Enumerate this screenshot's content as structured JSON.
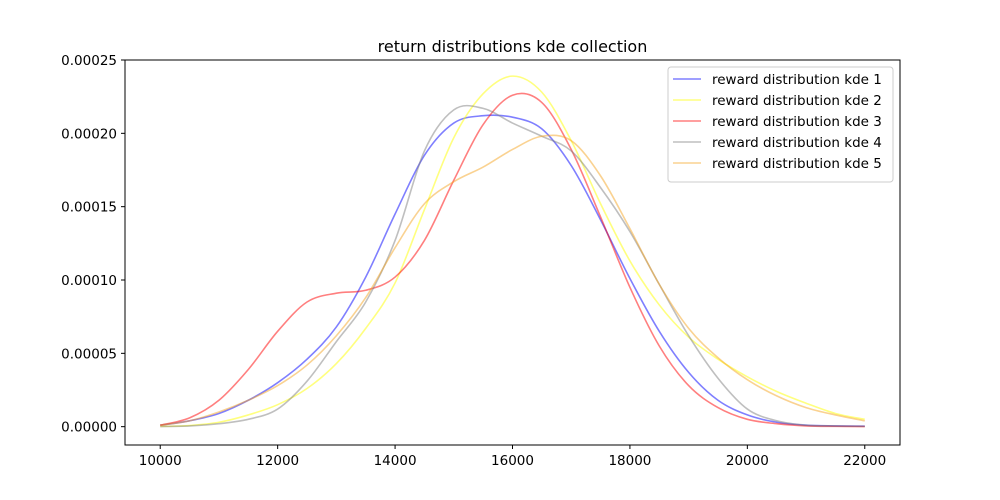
{
  "chart_data": {
    "type": "line",
    "title": "return distributions kde collection",
    "xlabel": "",
    "ylabel": "",
    "xlim": [
      9400,
      22600
    ],
    "ylim": [
      -1.25e-05,
      0.00025
    ],
    "x_ticks": [
      10000,
      12000,
      14000,
      16000,
      18000,
      20000,
      22000
    ],
    "x_tick_labels": [
      "10000",
      "12000",
      "14000",
      "16000",
      "18000",
      "20000",
      "22000"
    ],
    "y_ticks": [
      0,
      5e-05,
      0.0001,
      0.00015,
      0.0002,
      0.00025
    ],
    "y_tick_labels": [
      "0.00000",
      "0.00005",
      "0.00010",
      "0.00015",
      "0.00020",
      "0.00025"
    ],
    "grid": false,
    "legend_position": "top-right",
    "x": [
      10000,
      10500,
      11000,
      11500,
      12000,
      12500,
      13000,
      13500,
      14000,
      14500,
      15000,
      15500,
      16000,
      16500,
      17000,
      17500,
      18000,
      18500,
      19000,
      19500,
      20000,
      20500,
      21000,
      21500,
      22000
    ],
    "series": [
      {
        "name": "reward distribution kde 1",
        "color": "#0000ff",
        "values": [
          1e-06,
          4e-06,
          9e-06,
          1.8e-05,
          3e-05,
          4.6e-05,
          6.8e-05,
          0.000102,
          0.000145,
          0.000185,
          0.000207,
          0.000212,
          0.000211,
          0.000203,
          0.000178,
          0.000141,
          0.000101,
          6.5e-05,
          3.7e-05,
          1.8e-05,
          8e-06,
          3e-06,
          1e-06,
          5e-07,
          3e-07
        ]
      },
      {
        "name": "reward distribution kde 2",
        "color": "#ffff00",
        "values": [
          2e-07,
          8e-07,
          3e-06,
          8e-06,
          1.5e-05,
          2.6e-05,
          4.3e-05,
          6.7e-05,
          9.8e-05,
          0.000148,
          0.000197,
          0.000227,
          0.000239,
          0.000228,
          0.000195,
          0.000152,
          0.000113,
          8.3e-05,
          6.1e-05,
          4.6e-05,
          3.4e-05,
          2.4e-05,
          1.6e-05,
          9e-06,
          5e-06
        ]
      },
      {
        "name": "reward distribution kde 3",
        "color": "#ff0000",
        "values": [
          1e-06,
          6e-06,
          1.8e-05,
          3.9e-05,
          6.5e-05,
          8.5e-05,
          9.1e-05,
          9.3e-05,
          0.000102,
          0.000127,
          0.000168,
          0.000206,
          0.000226,
          0.000221,
          0.000189,
          0.000143,
          9.5e-05,
          5.5e-05,
          2.8e-05,
          1.3e-05,
          5e-06,
          2e-06,
          5e-07,
          2e-07,
          1e-07
        ]
      },
      {
        "name": "reward distribution kde 4",
        "color": "#808080",
        "values": [
          1e-07,
          5e-07,
          2e-06,
          5e-06,
          1.2e-05,
          3.1e-05,
          5.8e-05,
          8.5e-05,
          0.000127,
          0.000188,
          0.000216,
          0.000217,
          0.000207,
          0.000198,
          0.000188,
          0.000163,
          0.000133,
          9.7e-05,
          6.2e-05,
          3.3e-05,
          1.2e-05,
          4e-06,
          1e-06,
          5e-07,
          2e-07
        ]
      },
      {
        "name": "reward distribution kde 5",
        "color": "#f5a623",
        "values": [
          1e-06,
          4e-06,
          1e-05,
          1.8e-05,
          2.8e-05,
          4.2e-05,
          6.2e-05,
          8.8e-05,
          0.000122,
          0.000152,
          0.000167,
          0.000177,
          0.000189,
          0.000198,
          0.000195,
          0.000171,
          0.000135,
          9.7e-05,
          6.7e-05,
          4.7e-05,
          3.2e-05,
          2.1e-05,
          1.3e-05,
          8e-06,
          4e-06
        ]
      }
    ]
  }
}
